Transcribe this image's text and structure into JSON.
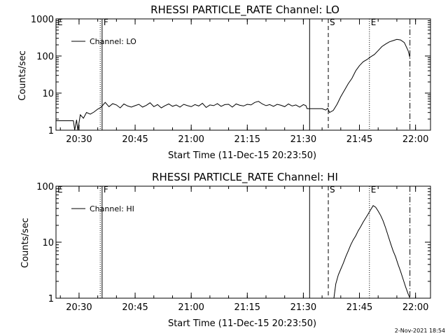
{
  "footer_timestamp": "2-Nov-2021 18:54",
  "chart_data": [
    {
      "type": "line",
      "title": "RHESSI PARTICLE_RATE Channel: LO",
      "xlabel": "Start Time (11-Dec-15 20:23:50)",
      "ylabel": "Counts/sec",
      "y_scale": "log",
      "ylim": [
        1,
        1000
      ],
      "xlim": [
        "20:23:50",
        "22:04:00"
      ],
      "yticks": [
        {
          "label": "1",
          "value": 1
        },
        {
          "label": "10",
          "value": 10
        },
        {
          "label": "100",
          "value": 100
        },
        {
          "label": "1000",
          "value": 1000
        }
      ],
      "xticks": [
        "20:30",
        "20:45",
        "21:00",
        "21:15",
        "21:30",
        "21:45",
        "22:00"
      ],
      "grid": false,
      "legend": {
        "position": "top-left",
        "entries": [
          "Channel: LO"
        ]
      },
      "annotations": [
        {
          "label": "E",
          "time": "20:23:50",
          "style": "none"
        },
        {
          "label": "",
          "time": "20:35:40",
          "style": "dotted"
        },
        {
          "label": "F",
          "time": "20:36:10",
          "style": "solid"
        },
        {
          "label": "",
          "time": "21:31:40",
          "style": "solid"
        },
        {
          "label": "S",
          "time": "21:36:40",
          "style": "dashed"
        },
        {
          "label": "E",
          "time": "21:47:40",
          "style": "dotted"
        },
        {
          "label": "",
          "time": "21:58:30",
          "style": "dashdot"
        }
      ],
      "series": [
        {
          "name": "Channel: LO",
          "time": [
            "20:23:50",
            "20:28:30",
            "20:28:50",
            "20:29:20",
            "20:29:40",
            "20:30:20",
            "20:31:10",
            "20:32:00",
            "20:33:00",
            "20:34:00",
            "20:35:00",
            "20:35:40",
            "20:36:10",
            "20:37:00",
            "20:38:00",
            "20:39:00",
            "20:40:00",
            "20:41:00",
            "20:42:00",
            "20:43:00",
            "20:44:00",
            "20:45:00",
            "20:46:00",
            "20:47:00",
            "20:48:00",
            "20:49:00",
            "20:50:00",
            "20:51:00",
            "20:52:00",
            "20:53:00",
            "20:54:00",
            "20:55:00",
            "20:56:00",
            "20:57:00",
            "20:58:00",
            "20:59:00",
            "21:00:00",
            "21:01:00",
            "21:02:00",
            "21:03:00",
            "21:04:00",
            "21:05:00",
            "21:06:00",
            "21:07:00",
            "21:08:00",
            "21:09:00",
            "21:10:00",
            "21:11:00",
            "21:12:00",
            "21:13:00",
            "21:14:00",
            "21:15:00",
            "21:16:00",
            "21:17:00",
            "21:18:00",
            "21:19:00",
            "21:20:00",
            "21:21:00",
            "21:22:00",
            "21:23:00",
            "21:24:00",
            "21:25:00",
            "21:26:00",
            "21:27:00",
            "21:28:00",
            "21:29:00",
            "21:30:00",
            "21:30:40",
            "21:31:00",
            "21:32:00",
            "21:33:00",
            "21:34:00",
            "21:35:00",
            "21:36:00",
            "21:36:30",
            "21:37:00",
            "21:38:00",
            "21:39:00",
            "21:40:00",
            "21:41:00",
            "21:42:00",
            "21:43:00",
            "21:44:00",
            "21:45:00",
            "21:46:00",
            "21:47:00",
            "21:48:00",
            "21:49:00",
            "21:50:00",
            "21:51:00",
            "21:52:00",
            "21:53:00",
            "21:54:00",
            "21:55:00",
            "21:56:00",
            "21:57:00",
            "21:58:00",
            "21:58:30"
          ],
          "values": [
            1.8,
            1.8,
            1.0,
            1.9,
            1.0,
            2.6,
            2.1,
            3.0,
            2.7,
            3.1,
            3.7,
            4.0,
            4.5,
            5.6,
            4.3,
            5.2,
            4.8,
            4.0,
            5.1,
            4.5,
            4.2,
            4.6,
            5.0,
            4.2,
            4.7,
            5.5,
            4.3,
            4.9,
            4.0,
            4.6,
            5.1,
            4.4,
            4.8,
            4.2,
            5.0,
            4.6,
            4.3,
            4.9,
            4.5,
            5.3,
            4.1,
            4.8,
            4.6,
            5.2,
            4.4,
            4.9,
            5.0,
            4.2,
            5.1,
            4.7,
            4.5,
            5.0,
            4.8,
            5.6,
            6.0,
            5.1,
            4.6,
            4.9,
            4.4,
            5.0,
            4.7,
            4.3,
            5.1,
            4.5,
            4.8,
            4.2,
            4.9,
            4.6,
            3.8,
            3.8,
            3.8,
            3.8,
            3.8,
            3.5,
            3.9,
            3.0,
            3.4,
            5.0,
            8.0,
            12,
            18,
            25,
            40,
            55,
            70,
            80,
            95,
            110,
            140,
            180,
            210,
            240,
            260,
            280,
            270,
            230,
            140,
            90
          ]
        }
      ]
    },
    {
      "type": "line",
      "title": "RHESSI PARTICLE_RATE Channel: HI",
      "xlabel": "Start Time (11-Dec-15 20:23:50)",
      "ylabel": "Counts/sec",
      "y_scale": "log",
      "ylim": [
        1,
        100
      ],
      "xlim": [
        "20:23:50",
        "22:04:00"
      ],
      "yticks": [
        {
          "label": "1",
          "value": 1
        },
        {
          "label": "10",
          "value": 10
        },
        {
          "label": "100",
          "value": 100
        }
      ],
      "xticks": [
        "20:30",
        "20:45",
        "21:00",
        "21:15",
        "21:30",
        "21:45",
        "22:00"
      ],
      "grid": false,
      "legend": {
        "position": "top-left",
        "entries": [
          "Channel: HI"
        ]
      },
      "annotations": [
        {
          "label": "E",
          "time": "20:23:50",
          "style": "none"
        },
        {
          "label": "",
          "time": "20:35:40",
          "style": "dotted"
        },
        {
          "label": "F",
          "time": "20:36:10",
          "style": "solid"
        },
        {
          "label": "",
          "time": "21:31:40",
          "style": "solid"
        },
        {
          "label": "S",
          "time": "21:36:40",
          "style": "dashed"
        },
        {
          "label": "E",
          "time": "21:47:40",
          "style": "dotted"
        },
        {
          "label": "",
          "time": "21:58:30",
          "style": "dashdot"
        }
      ],
      "series": [
        {
          "name": "Channel: HI",
          "time": [
            "21:38:10",
            "21:38:40",
            "21:39:20",
            "21:40:00",
            "21:40:40",
            "21:41:20",
            "21:42:00",
            "21:42:40",
            "21:43:20",
            "21:44:00",
            "21:44:40",
            "21:45:20",
            "21:46:00",
            "21:46:40",
            "21:47:20",
            "21:48:00",
            "21:48:40",
            "21:49:20",
            "21:50:00",
            "21:50:40",
            "21:51:20",
            "21:52:00",
            "21:52:40",
            "21:53:20",
            "21:54:00",
            "21:54:40",
            "21:55:20",
            "21:56:00",
            "21:56:40",
            "21:57:20",
            "21:58:00",
            "21:58:30"
          ],
          "values": [
            1.0,
            1.8,
            2.6,
            3.3,
            4.2,
            5.5,
            7.0,
            9.0,
            11,
            13,
            16,
            19,
            23,
            27,
            32,
            38,
            45,
            42,
            36,
            30,
            24,
            18,
            13,
            9.5,
            7.0,
            5.5,
            4.0,
            3.0,
            2.2,
            1.6,
            1.2,
            1.0
          ]
        }
      ]
    }
  ]
}
